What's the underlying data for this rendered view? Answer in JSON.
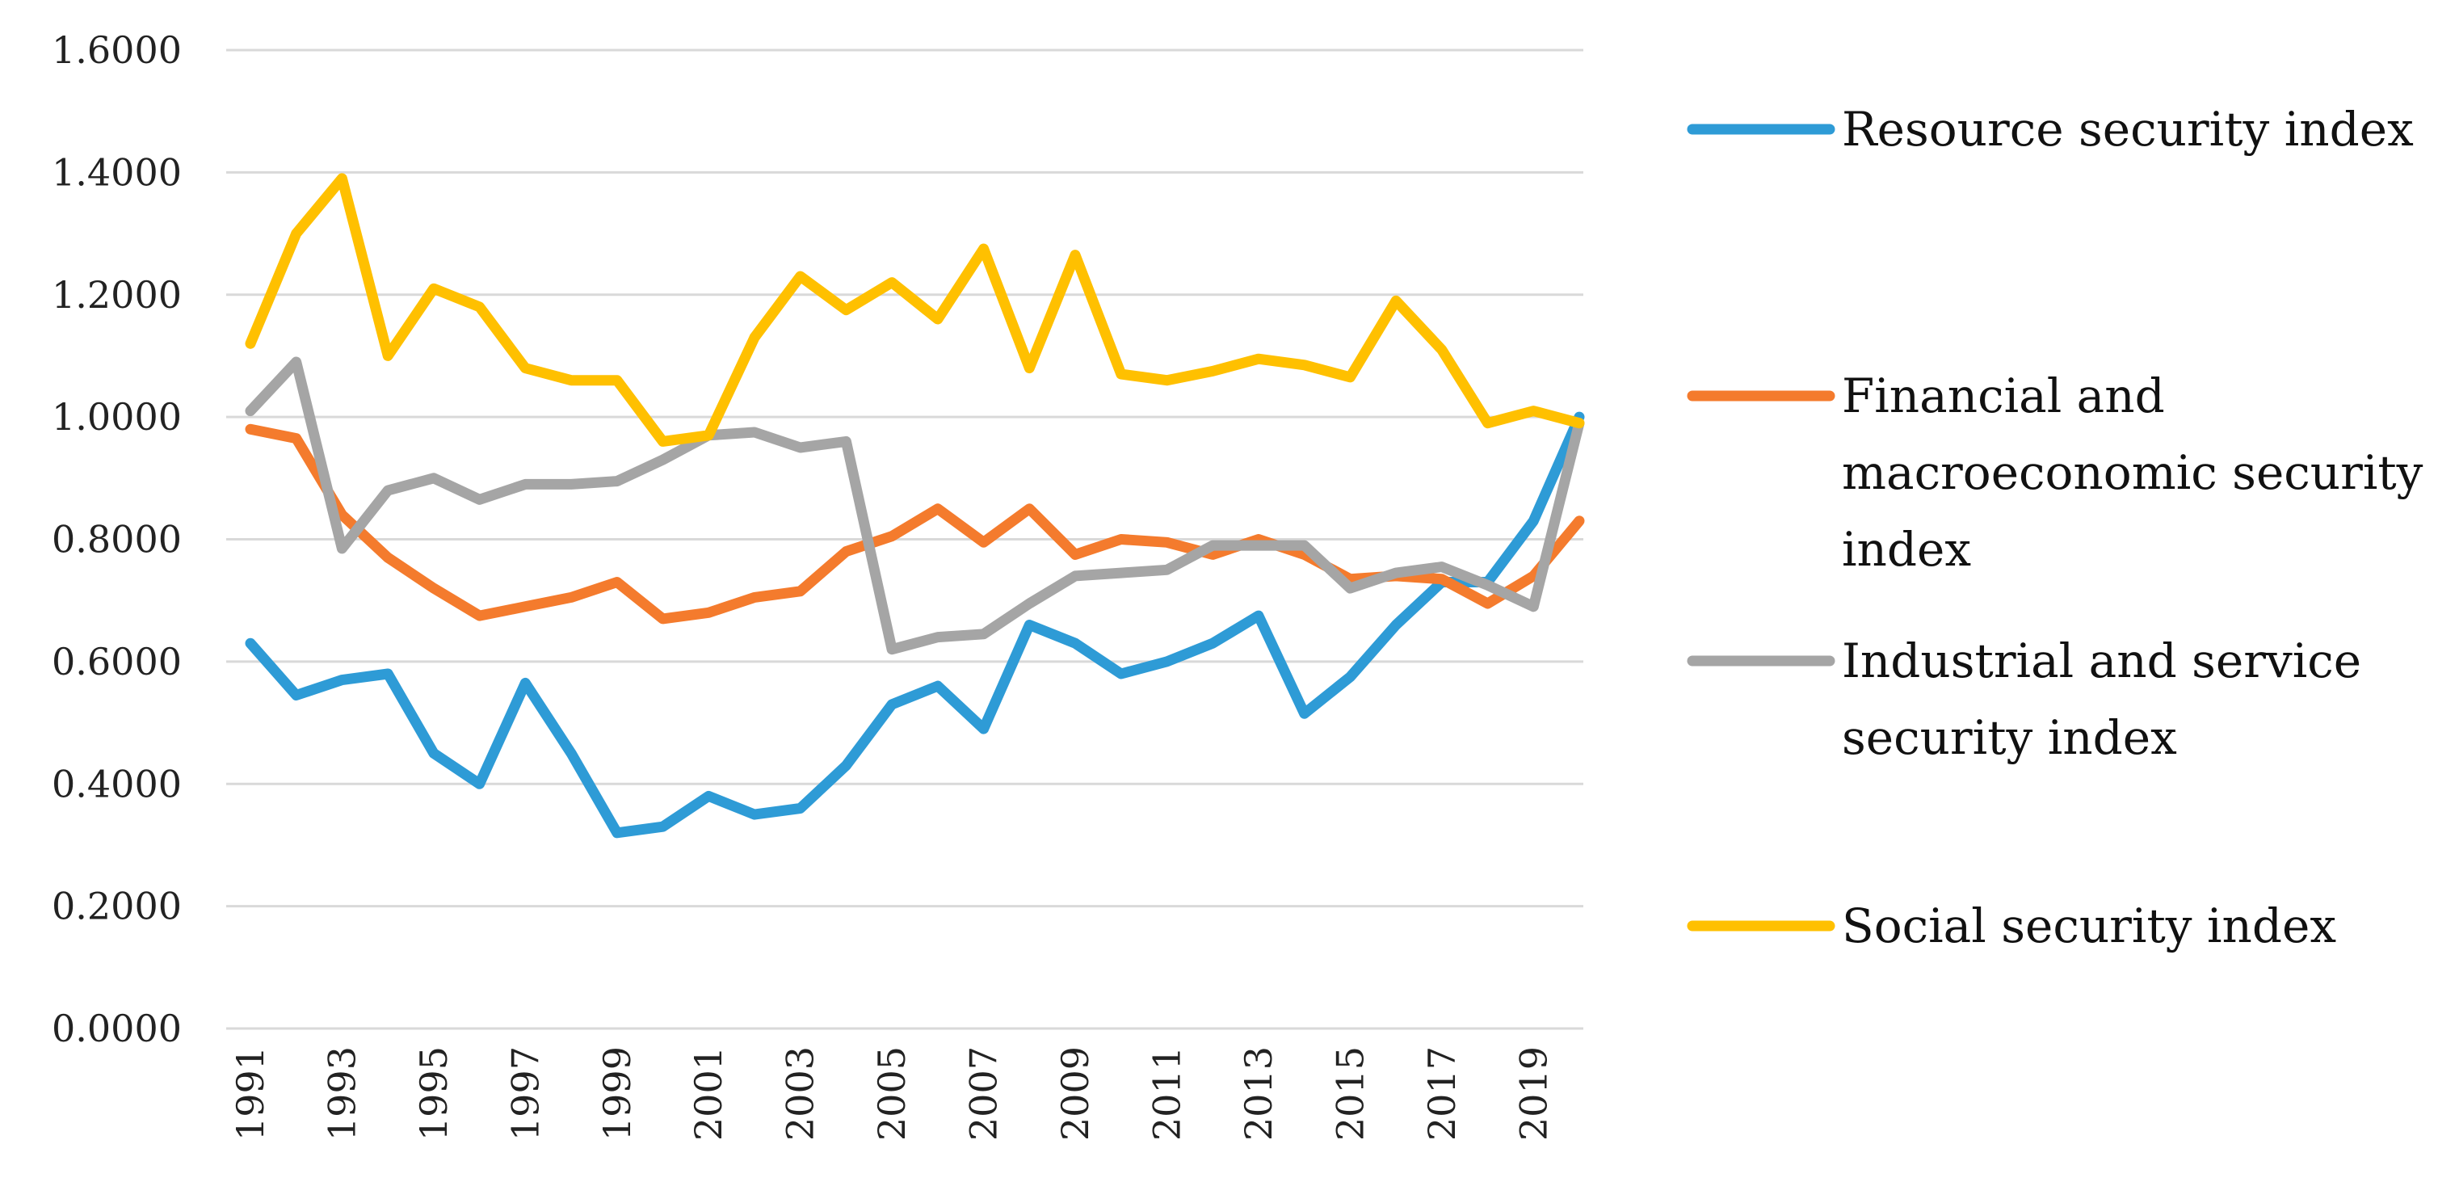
{
  "chart_data": {
    "type": "line",
    "title": "",
    "xlabel": "",
    "ylabel": "",
    "ylim": [
      0,
      1.6
    ],
    "yticks": [
      "0.0000",
      "0.2000",
      "0.4000",
      "0.6000",
      "0.8000",
      "1.0000",
      "1.2000",
      "1.4000",
      "1.6000"
    ],
    "x": [
      1991,
      1992,
      1993,
      1994,
      1995,
      1996,
      1997,
      1998,
      1999,
      2000,
      2001,
      2002,
      2003,
      2004,
      2005,
      2006,
      2007,
      2008,
      2009,
      2010,
      2011,
      2012,
      2013,
      2014,
      2015,
      2016,
      2017,
      2018,
      2019,
      2020
    ],
    "xtick_labels": [
      "1991",
      "1993",
      "1995",
      "1997",
      "1999",
      "2001",
      "2003",
      "2005",
      "2007",
      "2009",
      "2011",
      "2013",
      "2015",
      "2017",
      "2019"
    ],
    "grid": "horizontal",
    "legend_position": "right",
    "series": [
      {
        "name": "Resource security index",
        "legend_lines": [
          "Resource security index"
        ],
        "color": "#2E9BD6",
        "values": [
          0.63,
          0.545,
          0.57,
          0.58,
          0.45,
          0.4,
          0.565,
          0.45,
          0.32,
          0.33,
          0.38,
          0.35,
          0.36,
          0.43,
          0.53,
          0.56,
          0.49,
          0.66,
          0.63,
          0.58,
          0.6,
          0.63,
          0.675,
          0.515,
          0.575,
          0.66,
          0.73,
          0.73,
          0.83,
          1.0
        ]
      },
      {
        "name": "Financial and macroeconomic security index",
        "legend_lines": [
          "Financial and",
          "macroeconomic security",
          "index"
        ],
        "color": "#F47B2D",
        "values": [
          0.98,
          0.965,
          0.84,
          0.77,
          0.72,
          0.675,
          0.69,
          0.705,
          0.73,
          0.67,
          0.68,
          0.705,
          0.715,
          0.78,
          0.805,
          0.85,
          0.795,
          0.85,
          0.775,
          0.8,
          0.795,
          0.775,
          0.8,
          0.775,
          0.735,
          0.74,
          0.735,
          0.695,
          0.74,
          0.83
        ]
      },
      {
        "name": "Industrial and service security index",
        "legend_lines": [
          "Industrial and service",
          "security index"
        ],
        "color": "#A5A5A5",
        "values": [
          1.01,
          1.09,
          0.785,
          0.88,
          0.9,
          0.865,
          0.89,
          0.89,
          0.895,
          0.93,
          0.97,
          0.975,
          0.95,
          0.96,
          0.62,
          0.64,
          0.645,
          0.695,
          0.74,
          0.745,
          0.75,
          0.79,
          0.79,
          0.79,
          0.72,
          0.745,
          0.755,
          0.725,
          0.69,
          0.99
        ]
      },
      {
        "name": "Social security index",
        "legend_lines": [
          "Social security index"
        ],
        "color": "#FFC000",
        "values": [
          1.12,
          1.3,
          1.39,
          1.1,
          1.21,
          1.18,
          1.08,
          1.06,
          1.06,
          0.96,
          0.97,
          1.13,
          1.23,
          1.175,
          1.22,
          1.16,
          1.275,
          1.08,
          1.265,
          1.07,
          1.06,
          1.075,
          1.095,
          1.085,
          1.065,
          1.19,
          1.11,
          0.99,
          1.01,
          0.99
        ]
      }
    ]
  }
}
